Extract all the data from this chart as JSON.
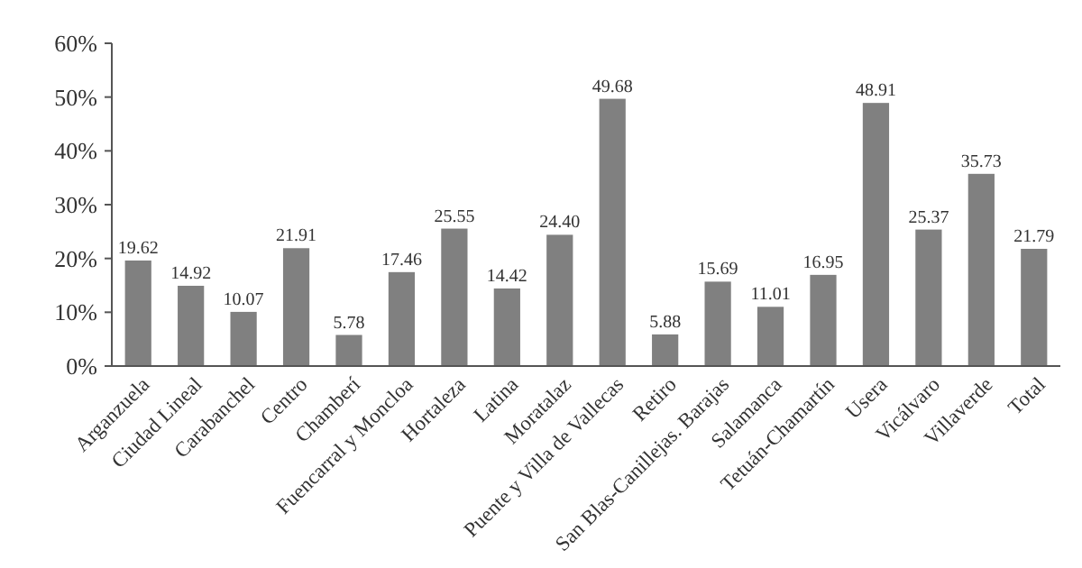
{
  "chart_data": {
    "type": "bar",
    "categories": [
      "Arganzuela",
      "Ciudad Lineal",
      "Carabanchel",
      "Centro",
      "Chamberí",
      "Fuencarral y Moncloa",
      "Hortaleza",
      "Latina",
      "Moratalaz",
      "Puente y Villa de Vallecas",
      "Retiro",
      "San Blas-Canillejas. Barajas",
      "Salamanca",
      "Tetuán-Chamartín",
      "Usera",
      "Vicálvaro",
      "Villaverde",
      "Total"
    ],
    "values": [
      19.62,
      14.92,
      10.07,
      21.91,
      5.78,
      17.46,
      25.55,
      14.42,
      24.4,
      49.68,
      5.88,
      15.69,
      11.01,
      16.95,
      48.91,
      25.37,
      35.73,
      21.79
    ],
    "value_labels": [
      "19.62",
      "14.92",
      "10.07",
      "21.91",
      "5.78",
      "17.46",
      "25.55",
      "14.42",
      "24.40",
      "49.68",
      "5.88",
      "15.69",
      "11.01",
      "16.95",
      "48.91",
      "25.37",
      "35.73",
      "21.79"
    ],
    "color": "#808080",
    "ylim": [
      0,
      60
    ],
    "yticks": [
      {
        "value": 0,
        "label": "0%"
      },
      {
        "value": 10,
        "label": "10%"
      },
      {
        "value": 20,
        "label": "20%"
      },
      {
        "value": 30,
        "label": "30%"
      },
      {
        "value": 40,
        "label": "40%"
      },
      {
        "value": 50,
        "label": "50%"
      },
      {
        "value": 60,
        "label": "60%"
      }
    ],
    "grid": false
  }
}
